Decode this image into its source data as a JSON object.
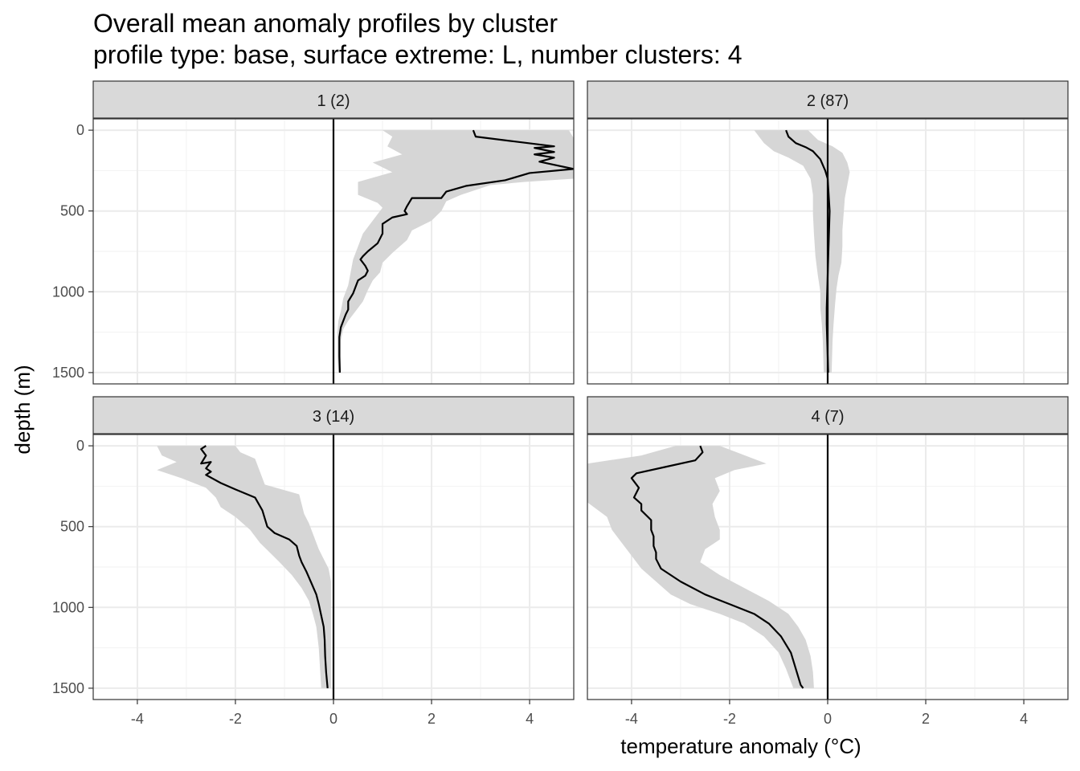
{
  "chart_data": {
    "type": "line",
    "title": "Overall mean anomaly profiles by cluster",
    "subtitle": "profile type: base, surface extreme: L, number clusters: 4",
    "xlabel": "temperature anomaly (°C)",
    "ylabel": "depth (m)",
    "xlim": [
      -4.9,
      4.9
    ],
    "ylim": [
      1570,
      -70
    ],
    "x_ticks": [
      -4,
      -2,
      0,
      2,
      4
    ],
    "x_tick_labels": [
      "-4",
      "-2",
      "0",
      "2",
      "4"
    ],
    "y_ticks": [
      0,
      500,
      1000,
      1500
    ],
    "y_tick_labels": [
      "0",
      "500",
      "1000",
      "1500"
    ],
    "vertical_reference_x": 0,
    "band_note": "grey ribbon = spread of anomalies around the mean profile",
    "panels": [
      {
        "label": "1 (2)",
        "mean": [
          [
            2.85,
            0
          ],
          [
            2.9,
            40
          ],
          [
            3.7,
            70
          ],
          [
            4.5,
            100
          ],
          [
            4.1,
            110
          ],
          [
            4.5,
            135
          ],
          [
            4.1,
            150
          ],
          [
            4.5,
            170
          ],
          [
            4.2,
            195
          ],
          [
            4.9,
            240
          ],
          [
            4.0,
            265
          ],
          [
            3.5,
            310
          ],
          [
            2.7,
            345
          ],
          [
            2.3,
            380
          ],
          [
            2.2,
            420
          ],
          [
            1.6,
            420
          ],
          [
            1.5,
            470
          ],
          [
            1.45,
            500
          ],
          [
            1.5,
            520
          ],
          [
            1.2,
            540
          ],
          [
            1.0,
            580
          ],
          [
            1.0,
            640
          ],
          [
            0.9,
            700
          ],
          [
            0.7,
            750
          ],
          [
            0.6,
            780
          ],
          [
            0.55,
            800
          ],
          [
            0.65,
            840
          ],
          [
            0.7,
            870
          ],
          [
            0.65,
            900
          ],
          [
            0.5,
            930
          ],
          [
            0.45,
            970
          ],
          [
            0.4,
            1010
          ],
          [
            0.3,
            1060
          ],
          [
            0.3,
            1110
          ],
          [
            0.25,
            1140
          ],
          [
            0.2,
            1180
          ],
          [
            0.15,
            1220
          ],
          [
            0.12,
            1280
          ],
          [
            0.12,
            1400
          ],
          [
            0.13,
            1500
          ]
        ],
        "upper": [
          [
            4.8,
            0
          ],
          [
            4.9,
            50
          ],
          [
            4.9,
            300
          ],
          [
            3.9,
            320
          ],
          [
            3.2,
            340
          ],
          [
            3.0,
            360
          ],
          [
            2.6,
            400
          ],
          [
            2.3,
            440
          ],
          [
            2.2,
            500
          ],
          [
            2.0,
            560
          ],
          [
            1.6,
            620
          ],
          [
            1.5,
            680
          ],
          [
            1.2,
            760
          ],
          [
            1.0,
            820
          ],
          [
            0.95,
            880
          ],
          [
            0.8,
            930
          ],
          [
            0.7,
            990
          ],
          [
            0.6,
            1060
          ],
          [
            0.45,
            1120
          ],
          [
            0.3,
            1180
          ],
          [
            0.2,
            1230
          ],
          [
            0.15,
            1300
          ],
          [
            0.15,
            1500
          ]
        ],
        "lower": [
          [
            1.0,
            0
          ],
          [
            1.2,
            40
          ],
          [
            1.1,
            100
          ],
          [
            1.4,
            150
          ],
          [
            0.8,
            200
          ],
          [
            1.2,
            260
          ],
          [
            0.5,
            320
          ],
          [
            0.5,
            400
          ],
          [
            0.9,
            450
          ],
          [
            1.0,
            480
          ],
          [
            0.8,
            560
          ],
          [
            0.6,
            640
          ],
          [
            0.5,
            720
          ],
          [
            0.4,
            800
          ],
          [
            0.35,
            880
          ],
          [
            0.3,
            960
          ],
          [
            0.2,
            1040
          ],
          [
            0.15,
            1120
          ],
          [
            0.1,
            1180
          ],
          [
            0.08,
            1250
          ],
          [
            0.08,
            1400
          ],
          [
            0.1,
            1500
          ]
        ]
      },
      {
        "label": "2 (87)",
        "mean": [
          [
            -0.85,
            0
          ],
          [
            -0.8,
            40
          ],
          [
            -0.65,
            80
          ],
          [
            -0.45,
            105
          ],
          [
            -0.3,
            130
          ],
          [
            -0.15,
            180
          ],
          [
            -0.05,
            250
          ],
          [
            0,
            300
          ],
          [
            0.02,
            400
          ],
          [
            0.04,
            500
          ],
          [
            0.03,
            600
          ],
          [
            0.02,
            700
          ],
          [
            0.01,
            800
          ],
          [
            0,
            900
          ],
          [
            -0.01,
            1000
          ],
          [
            -0.02,
            1100
          ],
          [
            -0.02,
            1200
          ],
          [
            -0.01,
            1300
          ],
          [
            0,
            1400
          ],
          [
            0.01,
            1500
          ]
        ],
        "upper": [
          [
            -0.4,
            0
          ],
          [
            -0.2,
            60
          ],
          [
            0.1,
            100
          ],
          [
            0.3,
            140
          ],
          [
            0.4,
            200
          ],
          [
            0.45,
            260
          ],
          [
            0.4,
            340
          ],
          [
            0.35,
            420
          ],
          [
            0.33,
            500
          ],
          [
            0.3,
            620
          ],
          [
            0.3,
            720
          ],
          [
            0.28,
            820
          ],
          [
            0.22,
            900
          ],
          [
            0.18,
            980
          ],
          [
            0.15,
            1080
          ],
          [
            0.12,
            1200
          ],
          [
            0.1,
            1300
          ],
          [
            0.08,
            1500
          ]
        ],
        "lower": [
          [
            -1.5,
            0
          ],
          [
            -1.3,
            80
          ],
          [
            -1.1,
            130
          ],
          [
            -0.8,
            170
          ],
          [
            -0.5,
            220
          ],
          [
            -0.35,
            300
          ],
          [
            -0.3,
            400
          ],
          [
            -0.3,
            520
          ],
          [
            -0.28,
            640
          ],
          [
            -0.25,
            780
          ],
          [
            -0.2,
            900
          ],
          [
            -0.15,
            1000
          ],
          [
            -0.15,
            1100
          ],
          [
            -0.12,
            1200
          ],
          [
            -0.1,
            1300
          ],
          [
            -0.08,
            1500
          ]
        ]
      },
      {
        "label": "3 (14)",
        "mean": [
          [
            -2.6,
            0
          ],
          [
            -2.7,
            20
          ],
          [
            -2.6,
            60
          ],
          [
            -2.7,
            110
          ],
          [
            -2.5,
            100
          ],
          [
            -2.6,
            140
          ],
          [
            -2.5,
            160
          ],
          [
            -2.6,
            180
          ],
          [
            -2.3,
            230
          ],
          [
            -2.0,
            270
          ],
          [
            -1.6,
            320
          ],
          [
            -1.45,
            400
          ],
          [
            -1.4,
            450
          ],
          [
            -1.35,
            500
          ],
          [
            -1.2,
            540
          ],
          [
            -0.9,
            580
          ],
          [
            -0.75,
            620
          ],
          [
            -0.7,
            680
          ],
          [
            -0.65,
            720
          ],
          [
            -0.55,
            780
          ],
          [
            -0.45,
            850
          ],
          [
            -0.35,
            920
          ],
          [
            -0.3,
            980
          ],
          [
            -0.25,
            1050
          ],
          [
            -0.2,
            1120
          ],
          [
            -0.18,
            1200
          ],
          [
            -0.17,
            1300
          ],
          [
            -0.15,
            1400
          ],
          [
            -0.12,
            1500
          ]
        ],
        "upper": [
          [
            -2.0,
            0
          ],
          [
            -1.9,
            40
          ],
          [
            -1.6,
            80
          ],
          [
            -1.5,
            160
          ],
          [
            -1.4,
            240
          ],
          [
            -0.7,
            300
          ],
          [
            -0.65,
            360
          ],
          [
            -0.6,
            420
          ],
          [
            -0.5,
            480
          ],
          [
            -0.4,
            560
          ],
          [
            -0.3,
            640
          ],
          [
            -0.2,
            700
          ],
          [
            -0.1,
            760
          ],
          [
            -0.05,
            840
          ],
          [
            -0.05,
            1000
          ],
          [
            -0.05,
            1500
          ]
        ],
        "lower": [
          [
            -3.6,
            0
          ],
          [
            -3.5,
            60
          ],
          [
            -3.2,
            100
          ],
          [
            -3.6,
            150
          ],
          [
            -3.1,
            200
          ],
          [
            -2.6,
            260
          ],
          [
            -2.4,
            320
          ],
          [
            -2.3,
            380
          ],
          [
            -2.0,
            440
          ],
          [
            -1.7,
            520
          ],
          [
            -1.5,
            600
          ],
          [
            -1.3,
            660
          ],
          [
            -1.1,
            720
          ],
          [
            -0.85,
            800
          ],
          [
            -0.65,
            880
          ],
          [
            -0.5,
            960
          ],
          [
            -0.42,
            1040
          ],
          [
            -0.35,
            1120
          ],
          [
            -0.3,
            1250
          ],
          [
            -0.25,
            1500
          ]
        ]
      },
      {
        "label": "4 (7)",
        "mean": [
          [
            -2.6,
            0
          ],
          [
            -2.55,
            40
          ],
          [
            -2.7,
            90
          ],
          [
            -3.3,
            130
          ],
          [
            -3.9,
            170
          ],
          [
            -4.0,
            200
          ],
          [
            -3.85,
            260
          ],
          [
            -3.95,
            320
          ],
          [
            -3.8,
            360
          ],
          [
            -3.8,
            400
          ],
          [
            -3.6,
            460
          ],
          [
            -3.6,
            520
          ],
          [
            -3.55,
            560
          ],
          [
            -3.55,
            620
          ],
          [
            -3.5,
            660
          ],
          [
            -3.5,
            700
          ],
          [
            -3.4,
            760
          ],
          [
            -3.0,
            840
          ],
          [
            -2.5,
            920
          ],
          [
            -2.0,
            980
          ],
          [
            -1.5,
            1040
          ],
          [
            -1.2,
            1100
          ],
          [
            -0.95,
            1180
          ],
          [
            -0.75,
            1280
          ],
          [
            -0.65,
            1380
          ],
          [
            -0.55,
            1480
          ],
          [
            -0.5,
            1500
          ]
        ],
        "upper": [
          [
            -2.2,
            0
          ],
          [
            -1.6,
            70
          ],
          [
            -1.25,
            110
          ],
          [
            -1.9,
            150
          ],
          [
            -2.3,
            200
          ],
          [
            -2.2,
            280
          ],
          [
            -2.35,
            360
          ],
          [
            -2.3,
            440
          ],
          [
            -2.2,
            520
          ],
          [
            -2.2,
            580
          ],
          [
            -2.5,
            640
          ],
          [
            -2.6,
            720
          ],
          [
            -2.2,
            800
          ],
          [
            -1.7,
            880
          ],
          [
            -1.2,
            960
          ],
          [
            -0.8,
            1040
          ],
          [
            -0.6,
            1120
          ],
          [
            -0.45,
            1200
          ],
          [
            -0.35,
            1300
          ],
          [
            -0.3,
            1400
          ],
          [
            -0.28,
            1500
          ]
        ],
        "lower": [
          [
            -3.1,
            0
          ],
          [
            -3.8,
            60
          ],
          [
            -4.9,
            110
          ],
          [
            -4.9,
            350
          ],
          [
            -4.5,
            440
          ],
          [
            -4.4,
            520
          ],
          [
            -4.2,
            600
          ],
          [
            -4.0,
            680
          ],
          [
            -3.8,
            760
          ],
          [
            -3.5,
            840
          ],
          [
            -3.2,
            920
          ],
          [
            -2.8,
            980
          ],
          [
            -2.2,
            1040
          ],
          [
            -1.7,
            1100
          ],
          [
            -1.3,
            1180
          ],
          [
            -1.0,
            1280
          ],
          [
            -0.85,
            1380
          ],
          [
            -0.7,
            1500
          ]
        ]
      }
    ]
  }
}
